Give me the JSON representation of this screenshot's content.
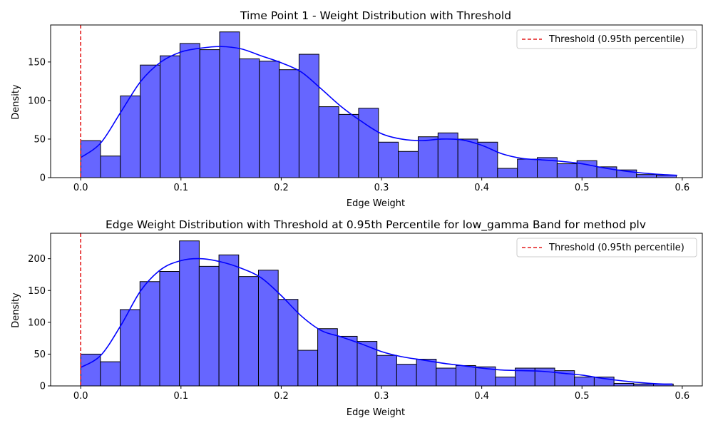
{
  "chart_data": [
    {
      "type": "bar",
      "title": "Time Point 1 - Weight Distribution with Threshold",
      "xlabel": "Edge Weight",
      "ylabel": "Density",
      "xlim": [
        -0.03,
        0.62
      ],
      "ylim": [
        0,
        198
      ],
      "xticks": [
        0.0,
        0.1,
        0.2,
        0.3,
        0.4,
        0.5,
        0.6
      ],
      "xtick_labels": [
        "0.0",
        "0.1",
        "0.2",
        "0.3",
        "0.4",
        "0.5",
        "0.6"
      ],
      "yticks": [
        0,
        50,
        100,
        150
      ],
      "ytick_labels": [
        "0",
        "50",
        "100",
        "150"
      ],
      "bin_start": 0.0,
      "bin_width": 0.0198,
      "values": [
        48,
        28,
        106,
        146,
        158,
        174,
        166,
        189,
        154,
        151,
        140,
        160,
        92,
        82,
        90,
        46,
        34,
        53,
        58,
        50,
        46,
        12,
        24,
        26,
        18,
        22,
        14,
        10,
        4,
        3
      ],
      "kde": {
        "x": [
          0.0,
          0.02,
          0.04,
          0.06,
          0.08,
          0.1,
          0.12,
          0.14,
          0.16,
          0.18,
          0.2,
          0.22,
          0.24,
          0.26,
          0.28,
          0.3,
          0.32,
          0.34,
          0.36,
          0.38,
          0.4,
          0.42,
          0.44,
          0.46,
          0.48,
          0.5,
          0.52,
          0.54,
          0.56,
          0.58,
          0.595
        ],
        "y": [
          26,
          45,
          85,
          125,
          150,
          163,
          168,
          170,
          167,
          158,
          149,
          137,
          115,
          92,
          73,
          57,
          50,
          48,
          50,
          49,
          42,
          31,
          25,
          23,
          21,
          18,
          13,
          9,
          6,
          4,
          3
        ]
      },
      "threshold": {
        "x": 0.0,
        "label": "Threshold (0.95th percentile)",
        "color": "#e41a1c"
      },
      "bar_color": "#6666ff",
      "kde_color": "#0000ff",
      "legend_position": "upper right",
      "grid": false
    },
    {
      "type": "bar",
      "title": "Edge Weight Distribution with Threshold at 0.95th Percentile for low_gamma Band for method plv",
      "xlabel": "Edge Weight",
      "ylabel": "Density",
      "xlim": [
        -0.03,
        0.62
      ],
      "ylim": [
        0,
        240
      ],
      "xticks": [
        0.0,
        0.1,
        0.2,
        0.3,
        0.4,
        0.5,
        0.6
      ],
      "xtick_labels": [
        "0.0",
        "0.1",
        "0.2",
        "0.3",
        "0.4",
        "0.5",
        "0.6"
      ],
      "yticks": [
        0,
        50,
        100,
        150,
        200
      ],
      "ytick_labels": [
        "0",
        "50",
        "100",
        "150",
        "200"
      ],
      "bin_start": 0.0,
      "bin_width": 0.0197,
      "values": [
        50,
        38,
        120,
        164,
        180,
        228,
        188,
        206,
        172,
        182,
        136,
        56,
        90,
        78,
        70,
        48,
        34,
        42,
        28,
        32,
        30,
        14,
        28,
        28,
        24,
        14,
        14,
        4,
        3,
        3
      ],
      "kde": {
        "x": [
          0.0,
          0.02,
          0.04,
          0.06,
          0.08,
          0.1,
          0.12,
          0.14,
          0.16,
          0.18,
          0.2,
          0.22,
          0.24,
          0.26,
          0.28,
          0.3,
          0.32,
          0.34,
          0.36,
          0.38,
          0.4,
          0.42,
          0.44,
          0.46,
          0.48,
          0.5,
          0.52,
          0.54,
          0.56,
          0.58,
          0.59
        ],
        "y": [
          29,
          48,
          95,
          150,
          183,
          197,
          200,
          195,
          185,
          170,
          142,
          110,
          87,
          77,
          66,
          54,
          46,
          41,
          36,
          32,
          28,
          25,
          24,
          23,
          20,
          17,
          12,
          8,
          5,
          3,
          3
        ]
      },
      "threshold": {
        "x": 0.0,
        "label": "Threshold (0.95th percentile)",
        "color": "#e41a1c"
      },
      "bar_color": "#6666ff",
      "kde_color": "#0000ff",
      "legend_position": "upper right",
      "grid": false
    }
  ]
}
